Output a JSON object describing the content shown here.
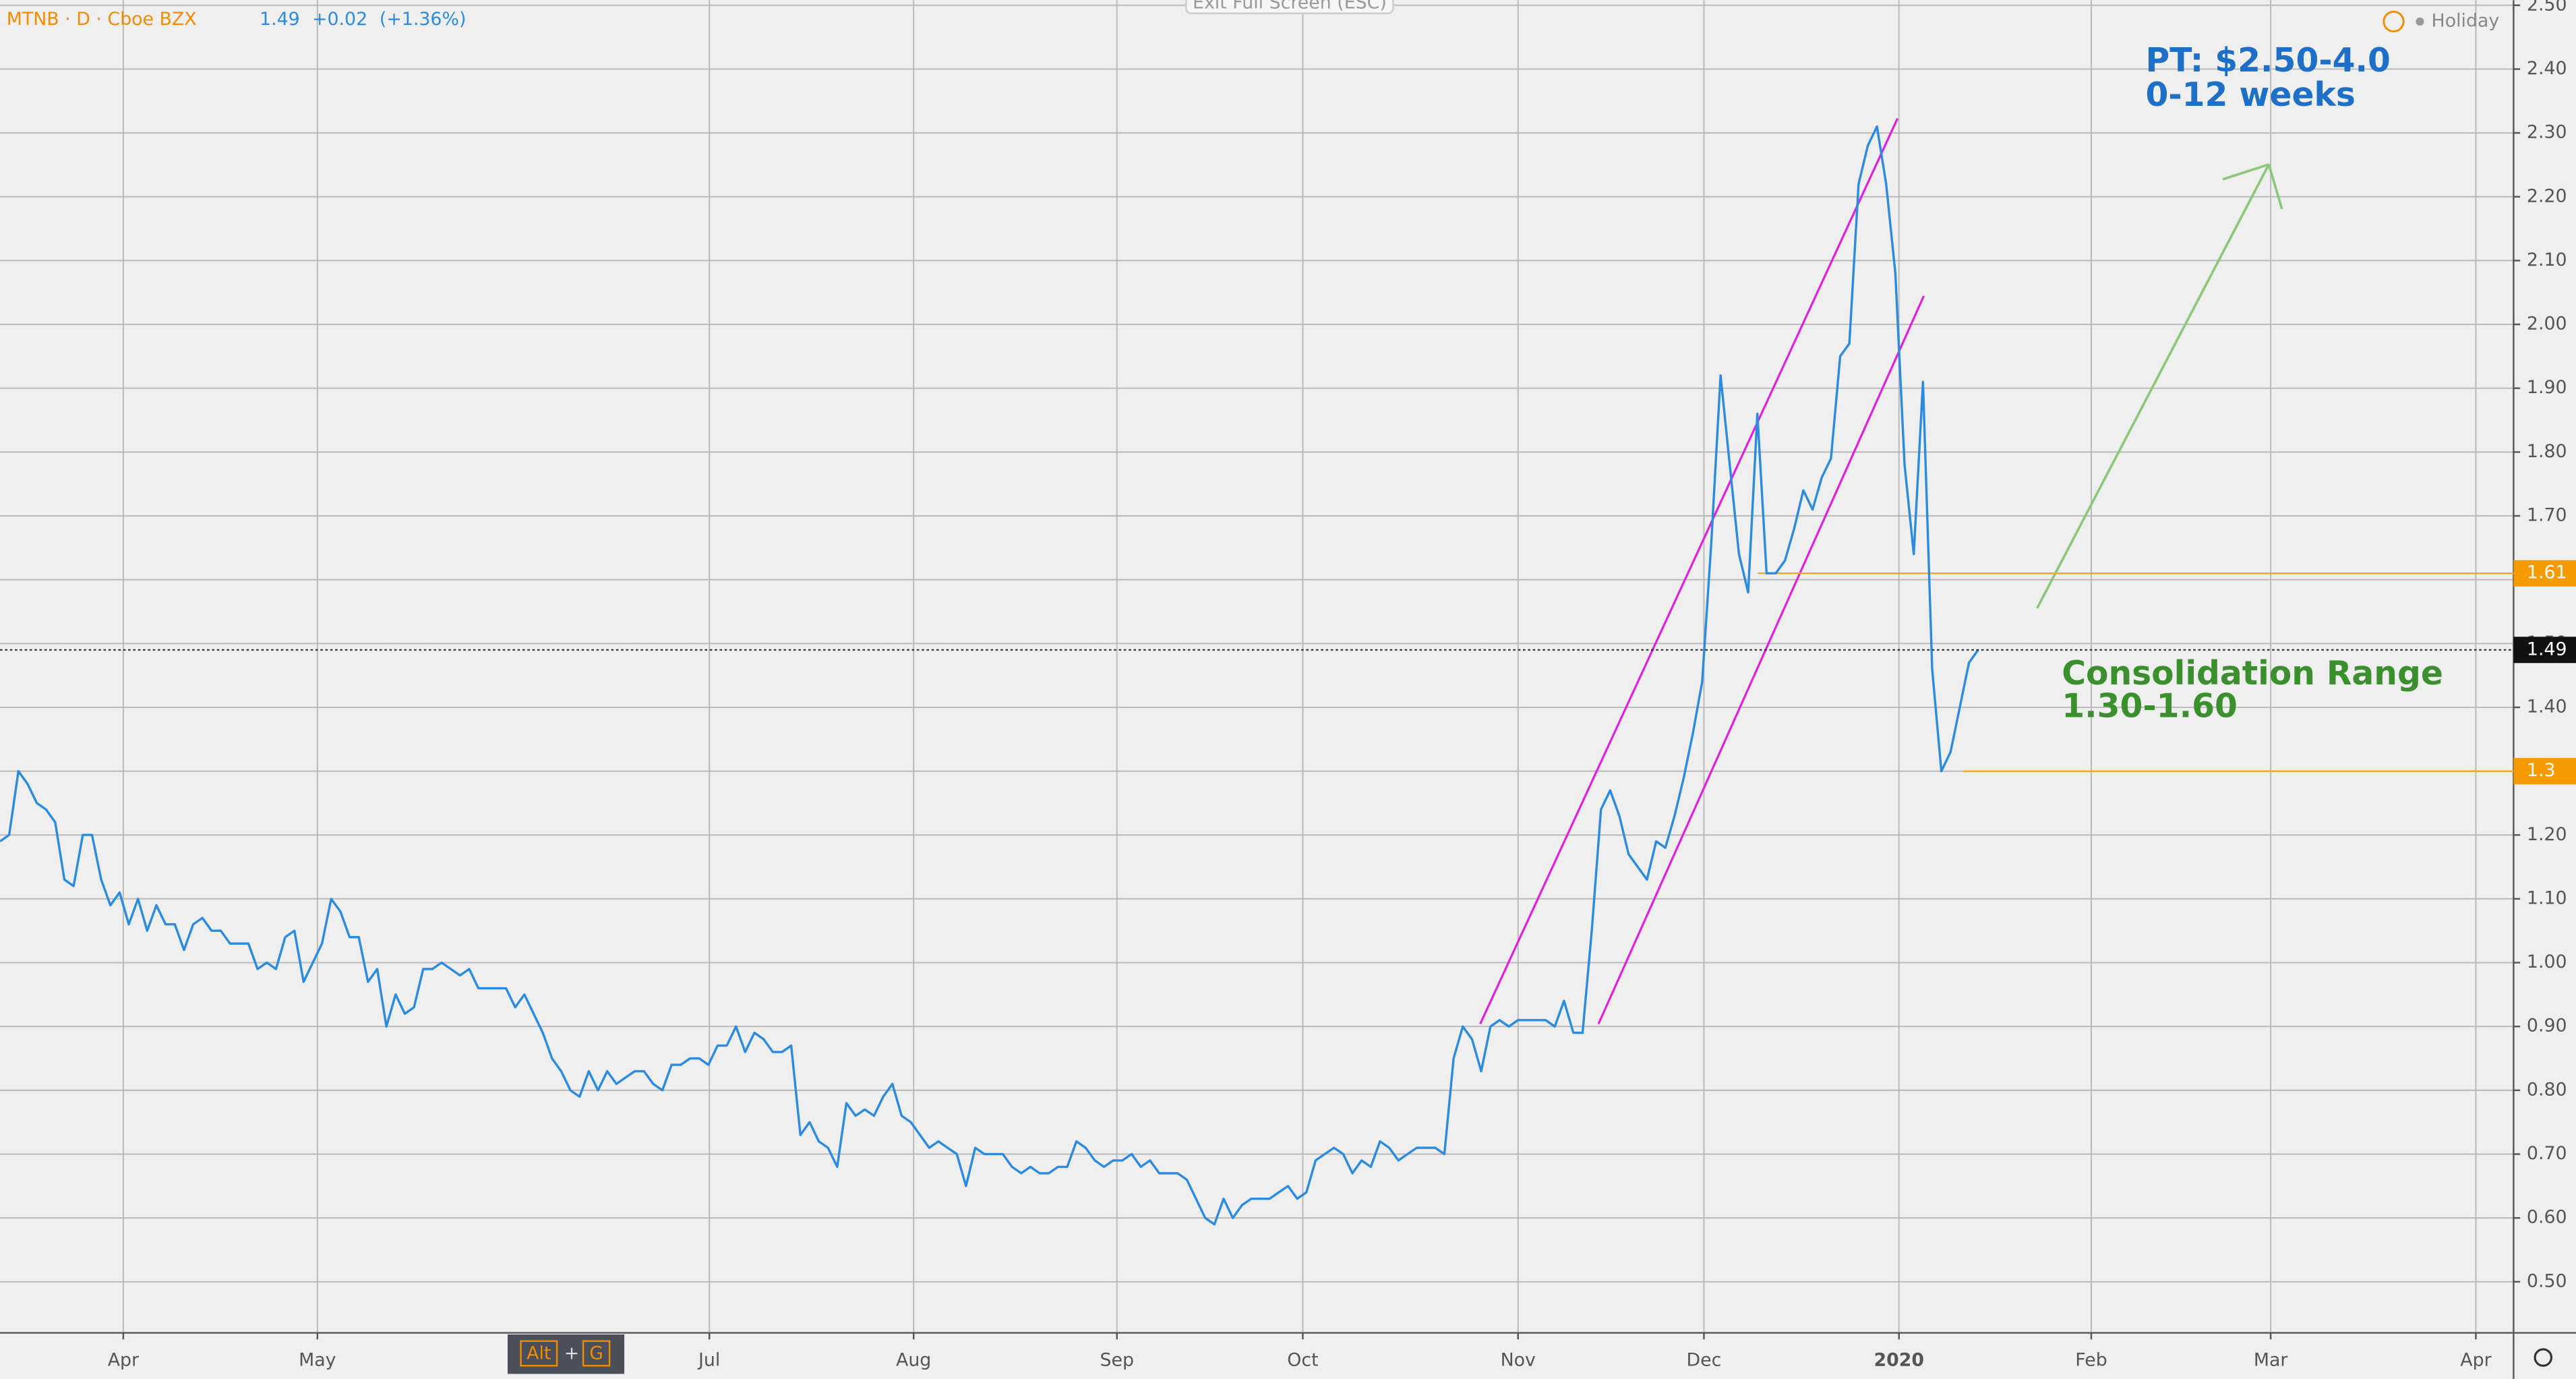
{
  "chart_data": {
    "type": "line",
    "header": {
      "symbol": "MTNB · D · Cboe BZX",
      "change": "+0.02",
      "change_pct": "(+1.36%)"
    },
    "ui": {
      "exit": "Exit Full Screen (ESC)",
      "holiday": "Holiday",
      "alt": "Alt",
      "plus": "+",
      "g": "G"
    },
    "annotations": {
      "target": "PT: $2.50-4.0",
      "target_time": "0-12 weeks",
      "range": "Consolidation Range",
      "range_values": "1.30-1.60"
    },
    "color": "#2a8be0",
    "last": 1.49,
    "hlines": [
      1.61,
      1.3
    ],
    "values": [
      1.19,
      1.2,
      1.3,
      1.28,
      1.25,
      1.24,
      1.22,
      1.13,
      1.12,
      1.2,
      1.2,
      1.13,
      1.09,
      1.11,
      1.06,
      1.1,
      1.05,
      1.09,
      1.06,
      1.06,
      1.02,
      1.06,
      1.07,
      1.05,
      1.05,
      1.03,
      1.03,
      1.03,
      0.99,
      1.0,
      0.99,
      1.04,
      1.05,
      0.97,
      1.0,
      1.03,
      1.1,
      1.08,
      1.04,
      1.04,
      0.97,
      0.99,
      0.9,
      0.95,
      0.92,
      0.93,
      0.99,
      0.99,
      1.0,
      0.99,
      0.98,
      0.99,
      0.96,
      0.96,
      0.96,
      0.96,
      0.93,
      0.95,
      0.92,
      0.89,
      0.85,
      0.83,
      0.8,
      0.79,
      0.83,
      0.8,
      0.83,
      0.81,
      0.82,
      0.83,
      0.83,
      0.81,
      0.8,
      0.84,
      0.84,
      0.85,
      0.85,
      0.84,
      0.87,
      0.87,
      0.9,
      0.86,
      0.89,
      0.88,
      0.86,
      0.86,
      0.87,
      0.73,
      0.75,
      0.72,
      0.71,
      0.68,
      0.78,
      0.76,
      0.77,
      0.76,
      0.79,
      0.81,
      0.76,
      0.75,
      0.73,
      0.71,
      0.72,
      0.71,
      0.7,
      0.65,
      0.71,
      0.7,
      0.7,
      0.7,
      0.68,
      0.67,
      0.68,
      0.67,
      0.67,
      0.68,
      0.68,
      0.72,
      0.71,
      0.69,
      0.68,
      0.69,
      0.69,
      0.7,
      0.68,
      0.69,
      0.67,
      0.67,
      0.67,
      0.66,
      0.63,
      0.6,
      0.59,
      0.63,
      0.6,
      0.62,
      0.63,
      0.63,
      0.63,
      0.64,
      0.65,
      0.63,
      0.64,
      0.69,
      0.7,
      0.71,
      0.7,
      0.67,
      0.69,
      0.68,
      0.72,
      0.71,
      0.69,
      0.7,
      0.71,
      0.71,
      0.71,
      0.7,
      0.85,
      0.9,
      0.88,
      0.83,
      0.9,
      0.91,
      0.9,
      0.91,
      0.91,
      0.91,
      0.91,
      0.9,
      0.94,
      0.89,
      0.89,
      1.05,
      1.24,
      1.27,
      1.23,
      1.17,
      1.15,
      1.13,
      1.19,
      1.18,
      1.23,
      1.29,
      1.36,
      1.44,
      1.66,
      1.92,
      1.78,
      1.64,
      1.58,
      1.86,
      1.61,
      1.61,
      1.63,
      1.68,
      1.74,
      1.71,
      1.76,
      1.79,
      1.95,
      1.97,
      2.22,
      2.28,
      2.31,
      2.22,
      2.08,
      1.78,
      1.64,
      1.91,
      1.46,
      1.3,
      1.33,
      1.4,
      1.47,
      1.49
    ],
    "xlim": [
      0,
      273.2
    ],
    "xticks": [
      {
        "value": 13.4,
        "label": "Apr"
      },
      {
        "value": 34.5,
        "label": "May"
      },
      {
        "value": 77.1,
        "label": "Jul"
      },
      {
        "value": 99.3,
        "label": "Aug"
      },
      {
        "value": 121.4,
        "label": "Sep"
      },
      {
        "value": 141.6,
        "label": "Oct"
      },
      {
        "value": 165,
        "label": "Nov"
      },
      {
        "value": 185.2,
        "label": "Dec"
      },
      {
        "value": 206.4,
        "label": "2020"
      },
      {
        "value": 227.3,
        "label": "Feb"
      },
      {
        "value": 246.8,
        "label": "Mar"
      },
      {
        "value": 269.1,
        "label": "Apr"
      }
    ],
    "ylim": [
      0.42,
      2.508
    ],
    "yticks": [
      {
        "value": 0.5,
        "label": "0.50"
      },
      {
        "value": 0.6,
        "label": "0.60"
      },
      {
        "value": 0.7,
        "label": "0.70"
      },
      {
        "value": 0.8,
        "label": "0.80"
      },
      {
        "value": 0.9,
        "label": "0.90"
      },
      {
        "value": 1.0,
        "label": "1.00"
      },
      {
        "value": 1.1,
        "label": "1.10"
      },
      {
        "value": 1.2,
        "label": "1.20"
      },
      {
        "value": 1.3,
        "label": "1.30"
      },
      {
        "value": 1.4,
        "label": "1.40"
      },
      {
        "value": 1.5,
        "label": "1.50"
      },
      {
        "value": 1.6,
        "label": "1.60"
      },
      {
        "value": 1.7,
        "label": "1.70"
      },
      {
        "value": 1.8,
        "label": "1.80"
      },
      {
        "value": 1.9,
        "label": "1.90"
      },
      {
        "value": 2.0,
        "label": "2.00"
      },
      {
        "value": 2.1,
        "label": "2.10"
      },
      {
        "value": 2.2,
        "label": "2.20"
      },
      {
        "value": 2.3,
        "label": "2.30"
      },
      {
        "value": 2.4,
        "label": "2.40"
      },
      {
        "value": 2.5,
        "label": "2.50"
      }
    ],
    "grid": true
  }
}
